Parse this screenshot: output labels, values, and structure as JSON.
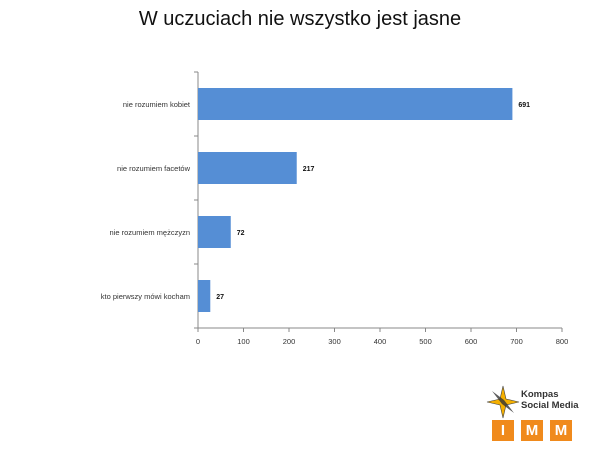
{
  "chart_data": {
    "type": "bar",
    "orientation": "horizontal",
    "title": "W uczuciach nie wszystko jest jasne",
    "categories": [
      "nie rozumiem kobiet",
      "nie rozumiem facetów",
      "nie rozumiem mężczyzn",
      "kto pierwszy mówi kocham"
    ],
    "values": [
      691,
      217,
      72,
      27
    ],
    "xlim": [
      0,
      800
    ],
    "xticks": [
      0,
      100,
      200,
      300,
      400,
      500,
      600,
      700,
      800
    ],
    "bar_color": "#558ed5",
    "grid": false,
    "legend": "none"
  },
  "logo": {
    "line1": "Kompas",
    "line2": "Social Media",
    "letters": [
      "I",
      "M",
      "M"
    ],
    "accent": "#f08a1c"
  }
}
